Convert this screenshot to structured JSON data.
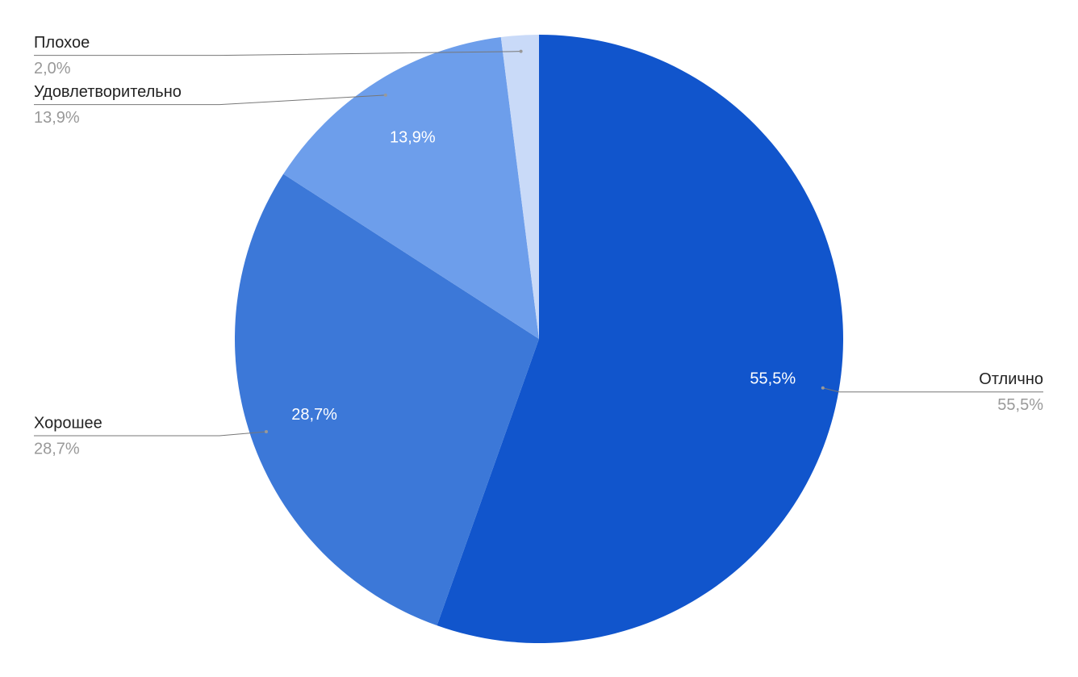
{
  "chart_data": {
    "type": "pie",
    "categories": [
      "Отлично",
      "Хорошее",
      "Удовлетворительно",
      "Плохое"
    ],
    "values": [
      55.5,
      28.7,
      13.9,
      2.0
    ],
    "value_labels": [
      "55,5%",
      "28,7%",
      "13,9%",
      "2,0%"
    ],
    "colors": [
      "#1155cc",
      "#3c78d8",
      "#6d9eeb",
      "#c9daf8"
    ]
  }
}
